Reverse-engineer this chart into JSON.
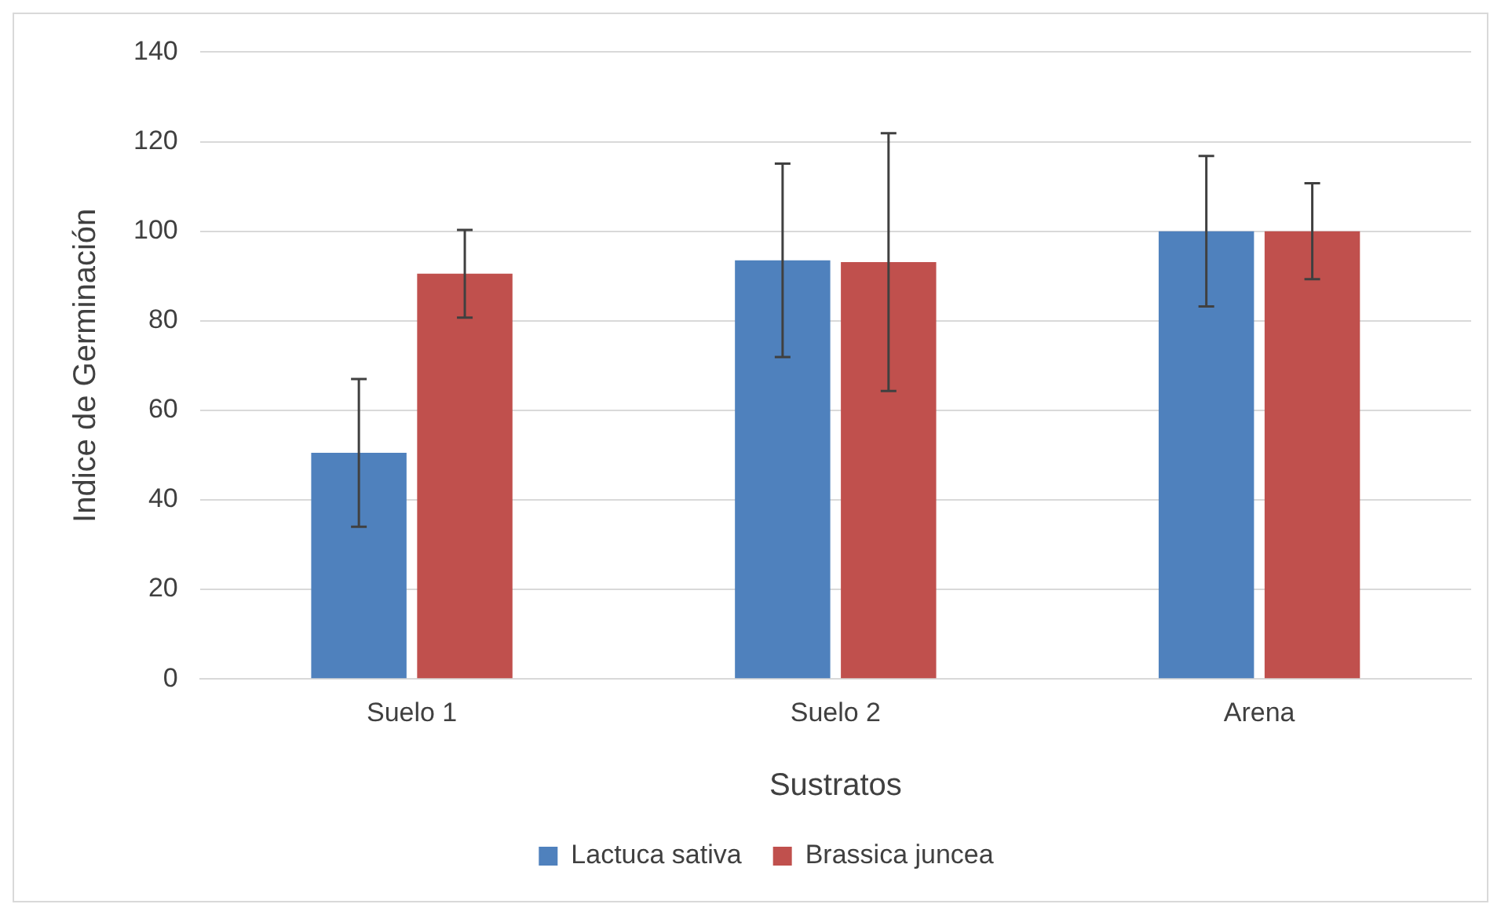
{
  "chart_data": {
    "type": "bar",
    "xlabel": "Sustratos",
    "ylabel": "Indice de Germinación",
    "categories": [
      "Suelo 1",
      "Suelo 2",
      "Arena"
    ],
    "series": [
      {
        "name": "Lactuca sativa",
        "color": "#4f81bd",
        "values": [
          50.5,
          93.5,
          100
        ],
        "errors": [
          16.5,
          21.6,
          16.8
        ]
      },
      {
        "name": "Brassica juncea",
        "color": "#c0504d",
        "values": [
          90.5,
          93.1,
          100
        ],
        "errors": [
          9.8,
          28.8,
          10.7
        ]
      }
    ],
    "ylim": [
      0,
      140
    ],
    "yticks": [
      0,
      20,
      40,
      60,
      80,
      100,
      120,
      140
    ],
    "grid": "y",
    "legend": "bottom"
  }
}
